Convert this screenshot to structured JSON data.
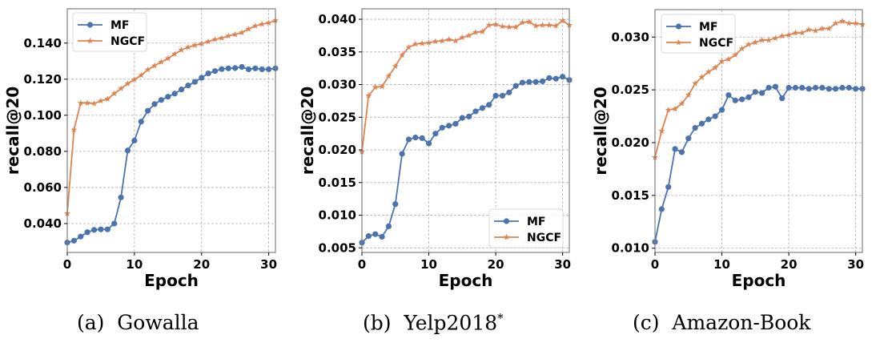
{
  "colors": {
    "MF": "#4c72b0",
    "NGCF": "#dd8452",
    "grid": "#b0b0b0",
    "frame": "#808080"
  },
  "chart_data": [
    {
      "type": "line",
      "caption": "(a)  Gowalla",
      "xlabel": "Epoch",
      "ylabel": "recall@20",
      "xlim": [
        0,
        31
      ],
      "ylim": [
        0.024,
        0.159
      ],
      "xticks": [
        0,
        10,
        20,
        30
      ],
      "xtick_labels": [
        "0",
        "10",
        "20",
        "30"
      ],
      "yticks": [
        0.04,
        0.06,
        0.08,
        0.1,
        0.12,
        0.14
      ],
      "ytick_labels": [
        "0.040",
        "0.060",
        "0.080",
        "0.100",
        "0.120",
        "0.140"
      ],
      "grid": true,
      "legend": "top-left",
      "x": [
        0,
        1,
        2,
        3,
        4,
        5,
        6,
        7,
        8,
        9,
        10,
        11,
        12,
        13,
        14,
        15,
        16,
        17,
        18,
        19,
        20,
        21,
        22,
        23,
        24,
        25,
        26,
        27,
        28,
        29,
        30,
        31
      ],
      "series": [
        {
          "name": "MF",
          "marker": "circle",
          "values": [
            0.0295,
            0.0305,
            0.0328,
            0.0352,
            0.0365,
            0.0368,
            0.0368,
            0.04,
            0.0545,
            0.0805,
            0.086,
            0.0965,
            0.1025,
            0.1062,
            0.1085,
            0.1103,
            0.112,
            0.1143,
            0.1165,
            0.1185,
            0.1208,
            0.1232,
            0.1245,
            0.1256,
            0.126,
            0.1262,
            0.1268,
            0.1255,
            0.126,
            0.1255,
            0.1255,
            0.126
          ]
        },
        {
          "name": "NGCF",
          "marker": "star",
          "values": [
            0.0455,
            0.092,
            0.1068,
            0.1068,
            0.1065,
            0.108,
            0.109,
            0.112,
            0.1148,
            0.1175,
            0.1198,
            0.1222,
            0.1253,
            0.1275,
            0.1295,
            0.1315,
            0.134,
            0.1362,
            0.1377,
            0.1388,
            0.1397,
            0.1408,
            0.142,
            0.1428,
            0.144,
            0.1448,
            0.1458,
            0.1478,
            0.1495,
            0.1505,
            0.1512,
            0.1525
          ]
        }
      ]
    },
    {
      "type": "line",
      "caption": "(b)  Yelp2018",
      "caption_sup": "*",
      "xlabel": "Epoch",
      "ylabel": "recall@20",
      "xlim": [
        0,
        31
      ],
      "ylim": [
        0.0043,
        0.0416
      ],
      "xticks": [
        0,
        10,
        20,
        30
      ],
      "xtick_labels": [
        "0",
        "10",
        "20",
        "30"
      ],
      "yticks": [
        0.005,
        0.01,
        0.015,
        0.02,
        0.025,
        0.03,
        0.035,
        0.04
      ],
      "ytick_labels": [
        "0.005",
        "0.010",
        "0.015",
        "0.020",
        "0.025",
        "0.030",
        "0.035",
        "0.040"
      ],
      "grid": true,
      "legend": "bottom-right",
      "x": [
        0,
        1,
        2,
        3,
        4,
        5,
        6,
        7,
        8,
        9,
        10,
        11,
        12,
        13,
        14,
        15,
        16,
        17,
        18,
        19,
        20,
        21,
        22,
        23,
        24,
        25,
        26,
        27,
        28,
        29,
        30,
        31
      ],
      "series": [
        {
          "name": "MF",
          "marker": "circle",
          "values": [
            0.0058,
            0.0068,
            0.0071,
            0.0067,
            0.0083,
            0.0117,
            0.0194,
            0.0216,
            0.0219,
            0.0218,
            0.021,
            0.0225,
            0.0234,
            0.0237,
            0.024,
            0.0249,
            0.0251,
            0.0259,
            0.0264,
            0.0269,
            0.0283,
            0.0283,
            0.0288,
            0.0298,
            0.0303,
            0.0304,
            0.0304,
            0.0305,
            0.031,
            0.0309,
            0.0312,
            0.0307
          ]
        },
        {
          "name": "NGCF",
          "marker": "star",
          "values": [
            0.0197,
            0.0283,
            0.0296,
            0.0297,
            0.0313,
            0.0328,
            0.0345,
            0.0357,
            0.0362,
            0.0363,
            0.0364,
            0.0366,
            0.0367,
            0.0369,
            0.0367,
            0.0372,
            0.0375,
            0.038,
            0.0381,
            0.0391,
            0.0392,
            0.0389,
            0.0388,
            0.0388,
            0.0395,
            0.0396,
            0.039,
            0.0391,
            0.0391,
            0.039,
            0.0398,
            0.0391
          ]
        }
      ]
    },
    {
      "type": "line",
      "caption": "(c)  Amazon-Book",
      "xlabel": "Epoch",
      "ylabel": "recall@20",
      "xlim": [
        0,
        31
      ],
      "ylim": [
        0.0096,
        0.0326
      ],
      "xticks": [
        0,
        10,
        20,
        30
      ],
      "xtick_labels": [
        "0",
        "10",
        "20",
        "30"
      ],
      "yticks": [
        0.01,
        0.015,
        0.02,
        0.025,
        0.03
      ],
      "ytick_labels": [
        "0.010",
        "0.015",
        "0.020",
        "0.025",
        "0.030"
      ],
      "grid": true,
      "legend": "top-left",
      "x": [
        0,
        1,
        2,
        3,
        4,
        5,
        6,
        7,
        8,
        9,
        10,
        11,
        12,
        13,
        14,
        15,
        16,
        17,
        18,
        19,
        20,
        21,
        22,
        23,
        24,
        25,
        26,
        27,
        28,
        29,
        30,
        31
      ],
      "series": [
        {
          "name": "MF",
          "marker": "circle",
          "values": [
            0.0106,
            0.0137,
            0.0158,
            0.0194,
            0.0191,
            0.0204,
            0.0214,
            0.0218,
            0.0222,
            0.0225,
            0.0231,
            0.0245,
            0.024,
            0.0241,
            0.0243,
            0.0248,
            0.0247,
            0.0252,
            0.0253,
            0.0242,
            0.0252,
            0.0252,
            0.0252,
            0.0251,
            0.0252,
            0.0252,
            0.0251,
            0.0251,
            0.0252,
            0.0252,
            0.0251,
            0.0251
          ]
        },
        {
          "name": "NGCF",
          "marker": "star",
          "values": [
            0.0186,
            0.0211,
            0.0231,
            0.0232,
            0.0237,
            0.0245,
            0.0256,
            0.0262,
            0.0267,
            0.0271,
            0.0277,
            0.0279,
            0.0283,
            0.0289,
            0.0293,
            0.0295,
            0.0297,
            0.0297,
            0.0299,
            0.0301,
            0.0302,
            0.0304,
            0.0304,
            0.0307,
            0.0306,
            0.0308,
            0.0308,
            0.0313,
            0.0315,
            0.0313,
            0.0313,
            0.0312
          ]
        }
      ]
    }
  ]
}
